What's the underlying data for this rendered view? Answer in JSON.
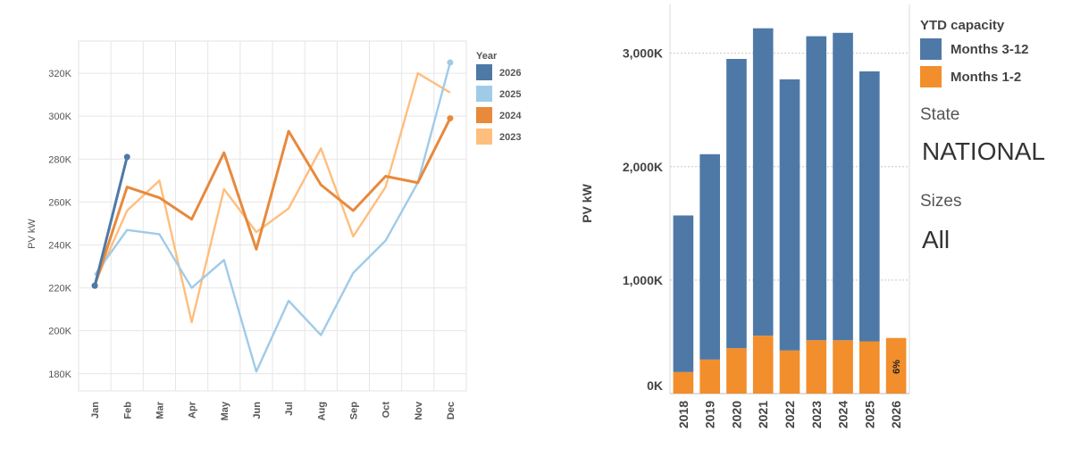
{
  "chart_data": [
    {
      "type": "line",
      "title": "",
      "xlabel": "",
      "ylabel": "PV kW",
      "categories": [
        "Jan",
        "Feb",
        "Mar",
        "Apr",
        "May",
        "Jun",
        "Jul",
        "Aug",
        "Sep",
        "Oct",
        "Nov",
        "Dec"
      ],
      "ylim": [
        172000,
        335000
      ],
      "yticks": [
        180000,
        200000,
        220000,
        240000,
        260000,
        280000,
        300000,
        320000
      ],
      "ytick_labels": [
        "180K",
        "200K",
        "220K",
        "240K",
        "260K",
        "280K",
        "300K",
        "320K"
      ],
      "grid": true,
      "legend_title": "Year",
      "legend_position": "top-right",
      "series": [
        {
          "name": "2026",
          "color": "#4e79a7",
          "values": [
            221000,
            281000,
            null,
            null,
            null,
            null,
            null,
            null,
            null,
            null,
            null,
            null
          ]
        },
        {
          "name": "2025",
          "color": "#a0cbe8",
          "values": [
            226000,
            247000,
            245000,
            220000,
            233000,
            181000,
            214000,
            198000,
            227000,
            242000,
            269000,
            325000
          ]
        },
        {
          "name": "2024",
          "color": "#e8893c",
          "values": [
            221000,
            267000,
            262000,
            252000,
            283000,
            238000,
            293000,
            268000,
            256000,
            272000,
            269000,
            299000
          ]
        },
        {
          "name": "2023",
          "color": "#ffbe7d",
          "values": [
            222000,
            256000,
            270000,
            204000,
            266000,
            246000,
            257000,
            285000,
            244000,
            267000,
            320000,
            311000
          ]
        }
      ]
    },
    {
      "type": "bar",
      "stacked": true,
      "title": "",
      "xlabel": "",
      "ylabel": "PV kW",
      "categories": [
        "2018",
        "2019",
        "2020",
        "2021",
        "2022",
        "2023",
        "2024",
        "2025",
        "2026"
      ],
      "ylim": [
        0,
        3430000
      ],
      "yticks": [
        0,
        1000000,
        2000000,
        3000000
      ],
      "ytick_labels": [
        "0K",
        "1,000K",
        "2,000K",
        "3,000K"
      ],
      "grid": true,
      "legend_title": "YTD capacity",
      "legend_position": "right",
      "series": [
        {
          "name": "Months 1-2",
          "color": "#f28e2b",
          "values": [
            190000,
            300000,
            400000,
            510000,
            380000,
            470000,
            470000,
            460000,
            490000
          ]
        },
        {
          "name": "Months 3-12",
          "color": "#4e79a7",
          "values": [
            1380000,
            1810000,
            2550000,
            2710000,
            2390000,
            2680000,
            2710000,
            2380000,
            0
          ]
        }
      ],
      "annotations": [
        {
          "category": "2026",
          "text": "6%"
        }
      ]
    }
  ],
  "filters": {
    "state_label": "State",
    "state_value": "NATIONAL",
    "sizes_label": "Sizes",
    "sizes_value": "All"
  }
}
